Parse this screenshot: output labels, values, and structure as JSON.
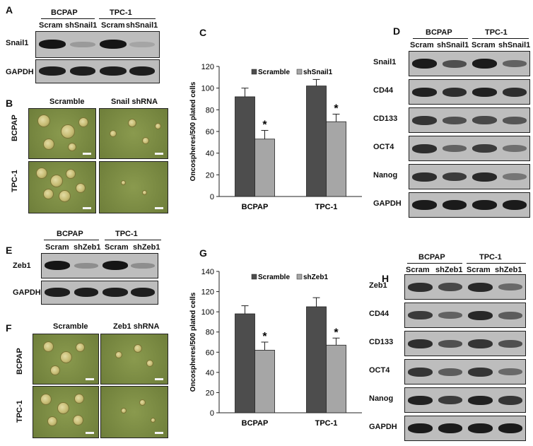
{
  "panels": {
    "A": {
      "letter": "A",
      "groups": [
        "BCPAP",
        "TPC-1"
      ],
      "lanes": [
        "Scram",
        "shSnail1",
        "Scram",
        "shSnail1"
      ],
      "rows": [
        "Snail1",
        "GAPDH"
      ]
    },
    "B": {
      "letter": "B",
      "cols": [
        "Scramble",
        "Snail shRNA"
      ],
      "rows": [
        "BCPAP",
        "TPC-1"
      ]
    },
    "C": {
      "letter": "C"
    },
    "D": {
      "letter": "D",
      "groups": [
        "BCPAP",
        "TPC-1"
      ],
      "lanes": [
        "Scram",
        "shSnail1",
        "Scram",
        "shSnail1"
      ],
      "rows": [
        "Snail1",
        "CD44",
        "CD133",
        "OCT4",
        "Nanog",
        "GAPDH"
      ]
    },
    "E": {
      "letter": "E",
      "groups": [
        "BCPAP",
        "TPC-1"
      ],
      "lanes": [
        "Scram",
        "shZeb1",
        "Scram",
        "shZeb1"
      ],
      "rows": [
        "Zeb1",
        "GAPDH"
      ]
    },
    "F": {
      "letter": "F",
      "cols": [
        "Scramble",
        "Zeb1 shRNA"
      ],
      "rows": [
        "BCPAP",
        "TPC-1"
      ]
    },
    "G": {
      "letter": "G"
    },
    "H": {
      "letter": "H",
      "groups": [
        "BCPAP",
        "TPC-1"
      ],
      "lanes": [
        "Scram",
        "shZeb1",
        "Scram",
        "shZeb1"
      ],
      "rows": [
        "Zeb1",
        "CD44",
        "CD133",
        "OCT4",
        "Nanog",
        "GAPDH"
      ]
    }
  },
  "chart_data": [
    {
      "type": "bar",
      "categories": [
        "BCPAP",
        "TPC-1"
      ],
      "series": [
        {
          "name": "Scramble",
          "values": [
            92,
            102
          ],
          "errors": [
            8,
            6
          ],
          "color": "#4d4d4d"
        },
        {
          "name": "shSnail1",
          "values": [
            53,
            69
          ],
          "errors": [
            8,
            7
          ],
          "color": "#a6a6a6"
        }
      ],
      "significance": [
        "*",
        "*"
      ],
      "ylabel": "Oncospheres/500 plated cells",
      "ylim": [
        0,
        120
      ],
      "yticks": [
        0,
        20,
        40,
        60,
        80,
        100,
        120
      ],
      "legend": "top-center",
      "grid": false
    },
    {
      "type": "bar",
      "categories": [
        "BCPAP",
        "TPC-1"
      ],
      "series": [
        {
          "name": "Scramble",
          "values": [
            98,
            105
          ],
          "errors": [
            8,
            9
          ],
          "color": "#4d4d4d"
        },
        {
          "name": "shZeb1",
          "values": [
            62,
            67
          ],
          "errors": [
            8,
            7
          ],
          "color": "#a6a6a6"
        }
      ],
      "significance": [
        "*",
        "*"
      ],
      "ylabel": "Oncospheres/500 plated cells",
      "ylim": [
        0,
        140
      ],
      "yticks": [
        0,
        20,
        40,
        60,
        80,
        100,
        120,
        140
      ],
      "legend": "top-center",
      "grid": false
    }
  ]
}
